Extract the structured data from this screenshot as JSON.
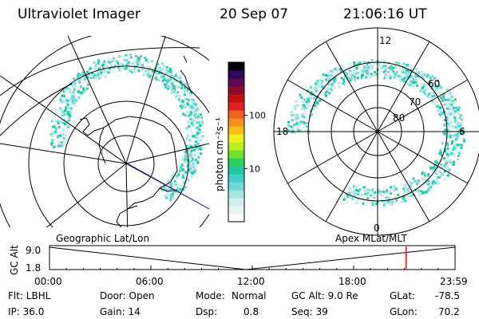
{
  "header": {
    "title": "Ultraviolet Imager",
    "date": "20 Sep 07",
    "time": "21:06:16 UT"
  },
  "colorbar": {
    "label": "photon cm⁻²s⁻¹",
    "ticks": [
      {
        "label": "100",
        "value": 100
      },
      {
        "label": "10",
        "value": 10
      }
    ],
    "colors": [
      "#ffffff",
      "#e8f4f4",
      "#d0eeee",
      "#a8e4e4",
      "#70d8d8",
      "#40d0c8",
      "#20c8a0",
      "#30d060",
      "#70e030",
      "#b8f020",
      "#f0f020",
      "#f8c010",
      "#f89020",
      "#f06020",
      "#e02020",
      "#c01010",
      "#900830",
      "#600850",
      "#300860",
      "#000000"
    ]
  },
  "left_map": {
    "caption": "Geographic Lat/Lon"
  },
  "right_map": {
    "caption": "Apex MLat/MLT",
    "mlt_labels": {
      "top": "12",
      "left": "18",
      "right": "6",
      "bottom": "0"
    },
    "lat_labels": [
      "60",
      "70",
      "80"
    ]
  },
  "timeline": {
    "ylabel": "GC Alt",
    "yticks": [
      "9.0",
      "1.8"
    ],
    "xticks": [
      "00:00",
      "06:00",
      "12:00",
      "18:00",
      "23:59"
    ],
    "current_time_hours": 21.1
  },
  "info": {
    "row1": {
      "flt": "Flt: LBHL",
      "door": "Door: Open",
      "mode_label": "Mode:",
      "mode_value": "Normal",
      "gcalt": "GC Alt: 9.0 Re",
      "glat_label": "GLat:",
      "glat_value": "-78.5"
    },
    "row2": {
      "ip": "IP: 36.0",
      "gain": "Gain: 14",
      "dsp_label": "Dsp:",
      "dsp_value": "0.8",
      "seq": "Seq: 39",
      "glon_label": "GLon:",
      "glon_value": "70.2"
    }
  }
}
